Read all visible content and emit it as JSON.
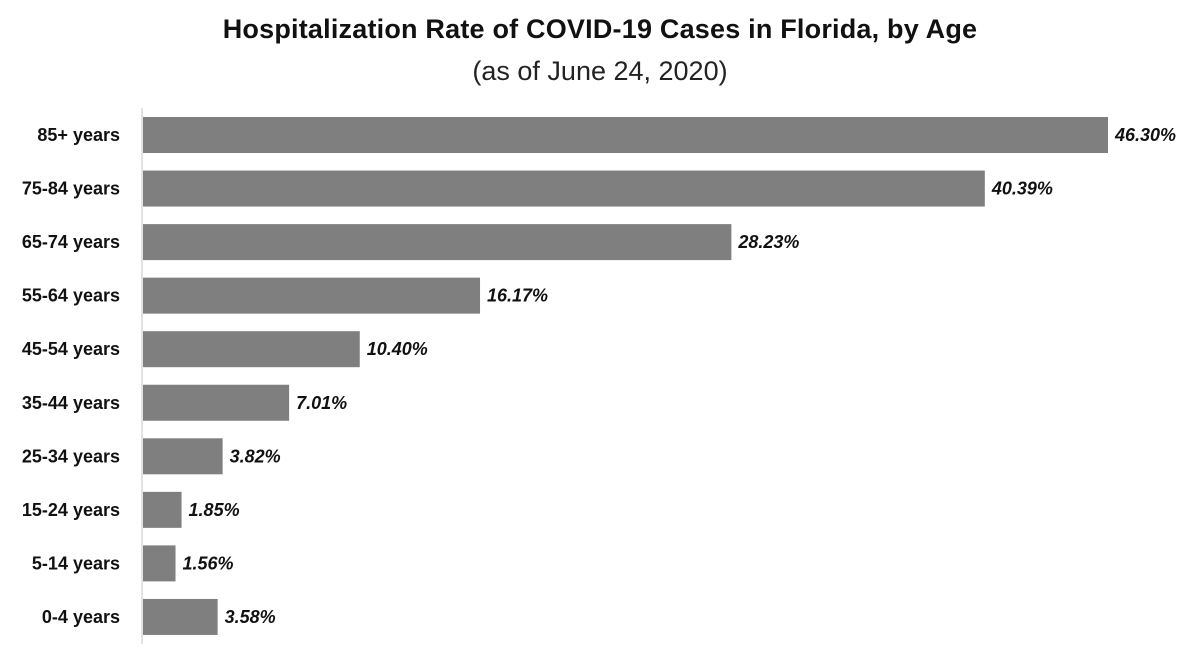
{
  "chart_data": {
    "type": "bar",
    "orientation": "horizontal",
    "title": "Hospitalization Rate of COVID-19 Cases in Florida, by Age",
    "subtitle": "(as of June 24, 2020)",
    "categories": [
      "85+ years",
      "75-84 years",
      "65-74 years",
      "55-64 years",
      "45-54 years",
      "35-44 years",
      "25-34 years",
      "15-24 years",
      "5-14 years",
      "0-4 years"
    ],
    "values": [
      46.3,
      40.39,
      28.23,
      16.17,
      10.4,
      7.01,
      3.82,
      1.85,
      1.56,
      3.58
    ],
    "value_labels": [
      "46.30%",
      "40.39%",
      "28.23%",
      "16.17%",
      "10.40%",
      "7.01%",
      "3.82%",
      "1.85%",
      "1.56%",
      "3.58%"
    ],
    "xlim": [
      0,
      46.3
    ],
    "grid": false,
    "legend": "none",
    "bar_color": "#7f7f7f",
    "axis_color": "#d9d9d9"
  }
}
